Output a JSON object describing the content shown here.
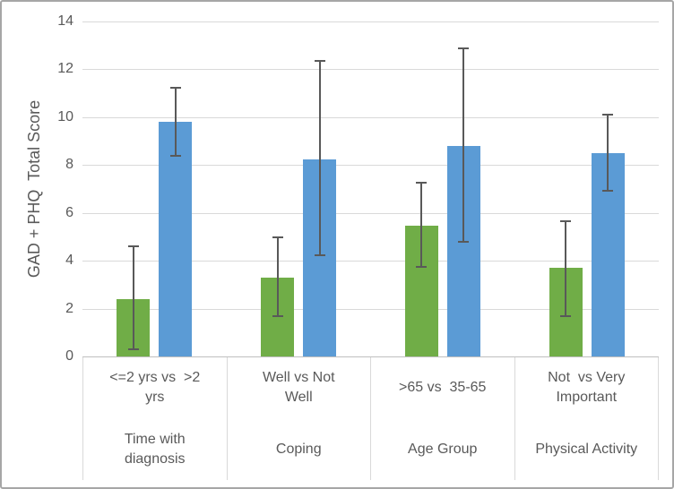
{
  "chart_data": {
    "type": "bar",
    "title": "",
    "xlabel": "",
    "ylabel": "GAD + PHQ  Total Score",
    "ylim": [
      0,
      14
    ],
    "yticks": [
      0,
      2,
      4,
      6,
      8,
      10,
      12,
      14
    ],
    "grid": true,
    "legend": "none",
    "error_bars": true,
    "groups": [
      {
        "comparison": "<=2 yrs vs  >2\nyrs",
        "factor": "Time with\ndiagnosis"
      },
      {
        "comparison": "Well vs Not\nWell",
        "factor": "Coping"
      },
      {
        "comparison": ">65 vs  35-65",
        "factor": "Age Group"
      },
      {
        "comparison": "Not  vs Very\nImportant",
        "factor": "Physical Activity"
      }
    ],
    "series": [
      {
        "key": "green",
        "color": "#70AD47",
        "values": [
          2.4,
          3.3,
          5.45,
          3.7
        ],
        "error_low": [
          0.25,
          1.65,
          3.7,
          1.65
        ],
        "error_high": [
          4.65,
          5.0,
          7.3,
          5.7
        ]
      },
      {
        "key": "blue",
        "color": "#5B9BD5",
        "values": [
          9.8,
          8.25,
          8.8,
          8.5
        ],
        "error_low": [
          8.35,
          4.2,
          4.75,
          6.9
        ],
        "error_high": [
          11.25,
          12.4,
          12.9,
          10.15
        ]
      }
    ]
  },
  "colors": {
    "green_bar": "#70AD47",
    "blue_bar": "#5B9BD5",
    "error_bar": "#595959",
    "gridline": "#D9D9D9",
    "axis_line": "#BFBFBF",
    "text": "#595959",
    "frame_border": "#A6A6A6",
    "background": "#FFFFFF"
  }
}
